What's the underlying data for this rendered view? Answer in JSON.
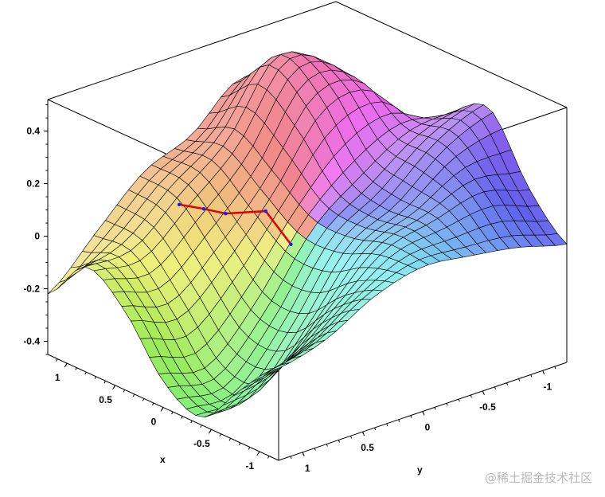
{
  "chart_data": {
    "type": "surface",
    "xlabel": "x",
    "ylabel": "y",
    "x": [
      -1.2,
      -0.8,
      -0.4,
      0,
      0.4,
      0.8,
      1.2
    ],
    "y": [
      -1.2,
      -0.8,
      -0.4,
      0,
      0.4,
      0.8,
      1.2
    ],
    "z": [
      [
        0.0,
        0.05,
        0.08,
        0.1,
        0.05,
        -0.05,
        -0.1
      ],
      [
        0.15,
        0.2,
        0.15,
        0.1,
        -0.05,
        -0.2,
        -0.25
      ],
      [
        0.38,
        0.3,
        0.15,
        0.05,
        -0.2,
        -0.4,
        -0.42
      ],
      [
        0.3,
        0.3,
        0.2,
        0.05,
        -0.2,
        -0.38,
        -0.35
      ],
      [
        0.15,
        0.4,
        0.4,
        0.15,
        -0.05,
        -0.2,
        -0.15
      ],
      [
        0.1,
        0.4,
        0.5,
        0.25,
        0.1,
        -0.05,
        -0.05
      ],
      [
        0.05,
        0.25,
        0.35,
        0.2,
        0.12,
        -0.05,
        -0.22
      ]
    ],
    "xlim": [
      -1.2,
      1.2
    ],
    "ylim": [
      -1.2,
      1.2
    ],
    "zlim": [
      -0.45,
      0.52
    ],
    "xticks": [
      {
        "v": 1,
        "label": "1"
      },
      {
        "v": 0.5,
        "label": "0.5"
      },
      {
        "v": 0,
        "label": "0"
      },
      {
        "v": -0.5,
        "label": "-0.5"
      },
      {
        "v": -1,
        "label": "-1"
      }
    ],
    "yticks": [
      {
        "v": 1,
        "label": "1"
      },
      {
        "v": 0.5,
        "label": "0.5"
      },
      {
        "v": 0,
        "label": "0"
      },
      {
        "v": -0.5,
        "label": "-0.5"
      },
      {
        "v": -1,
        "label": "-1"
      }
    ],
    "zticks": [
      {
        "v": 0.4,
        "label": "0.4"
      },
      {
        "v": 0.2,
        "label": "0.2"
      },
      {
        "v": 0,
        "label": "0"
      },
      {
        "v": -0.2,
        "label": "-0.2"
      },
      {
        "v": -0.4,
        "label": "-0.4"
      }
    ],
    "path": {
      "line_color": "#e00000",
      "marker_color": "#1020ff",
      "points": [
        [
          0.62,
          0.57,
          0.12
        ],
        [
          0.49,
          0.47,
          0.11
        ],
        [
          0.4,
          0.36,
          0.09
        ],
        [
          0.22,
          0.17,
          0.1
        ],
        [
          0.12,
          0.04,
          -0.03
        ]
      ]
    },
    "grid": false,
    "colormap": "hue by angle"
  },
  "watermark": "@稀土掘金技术社区"
}
